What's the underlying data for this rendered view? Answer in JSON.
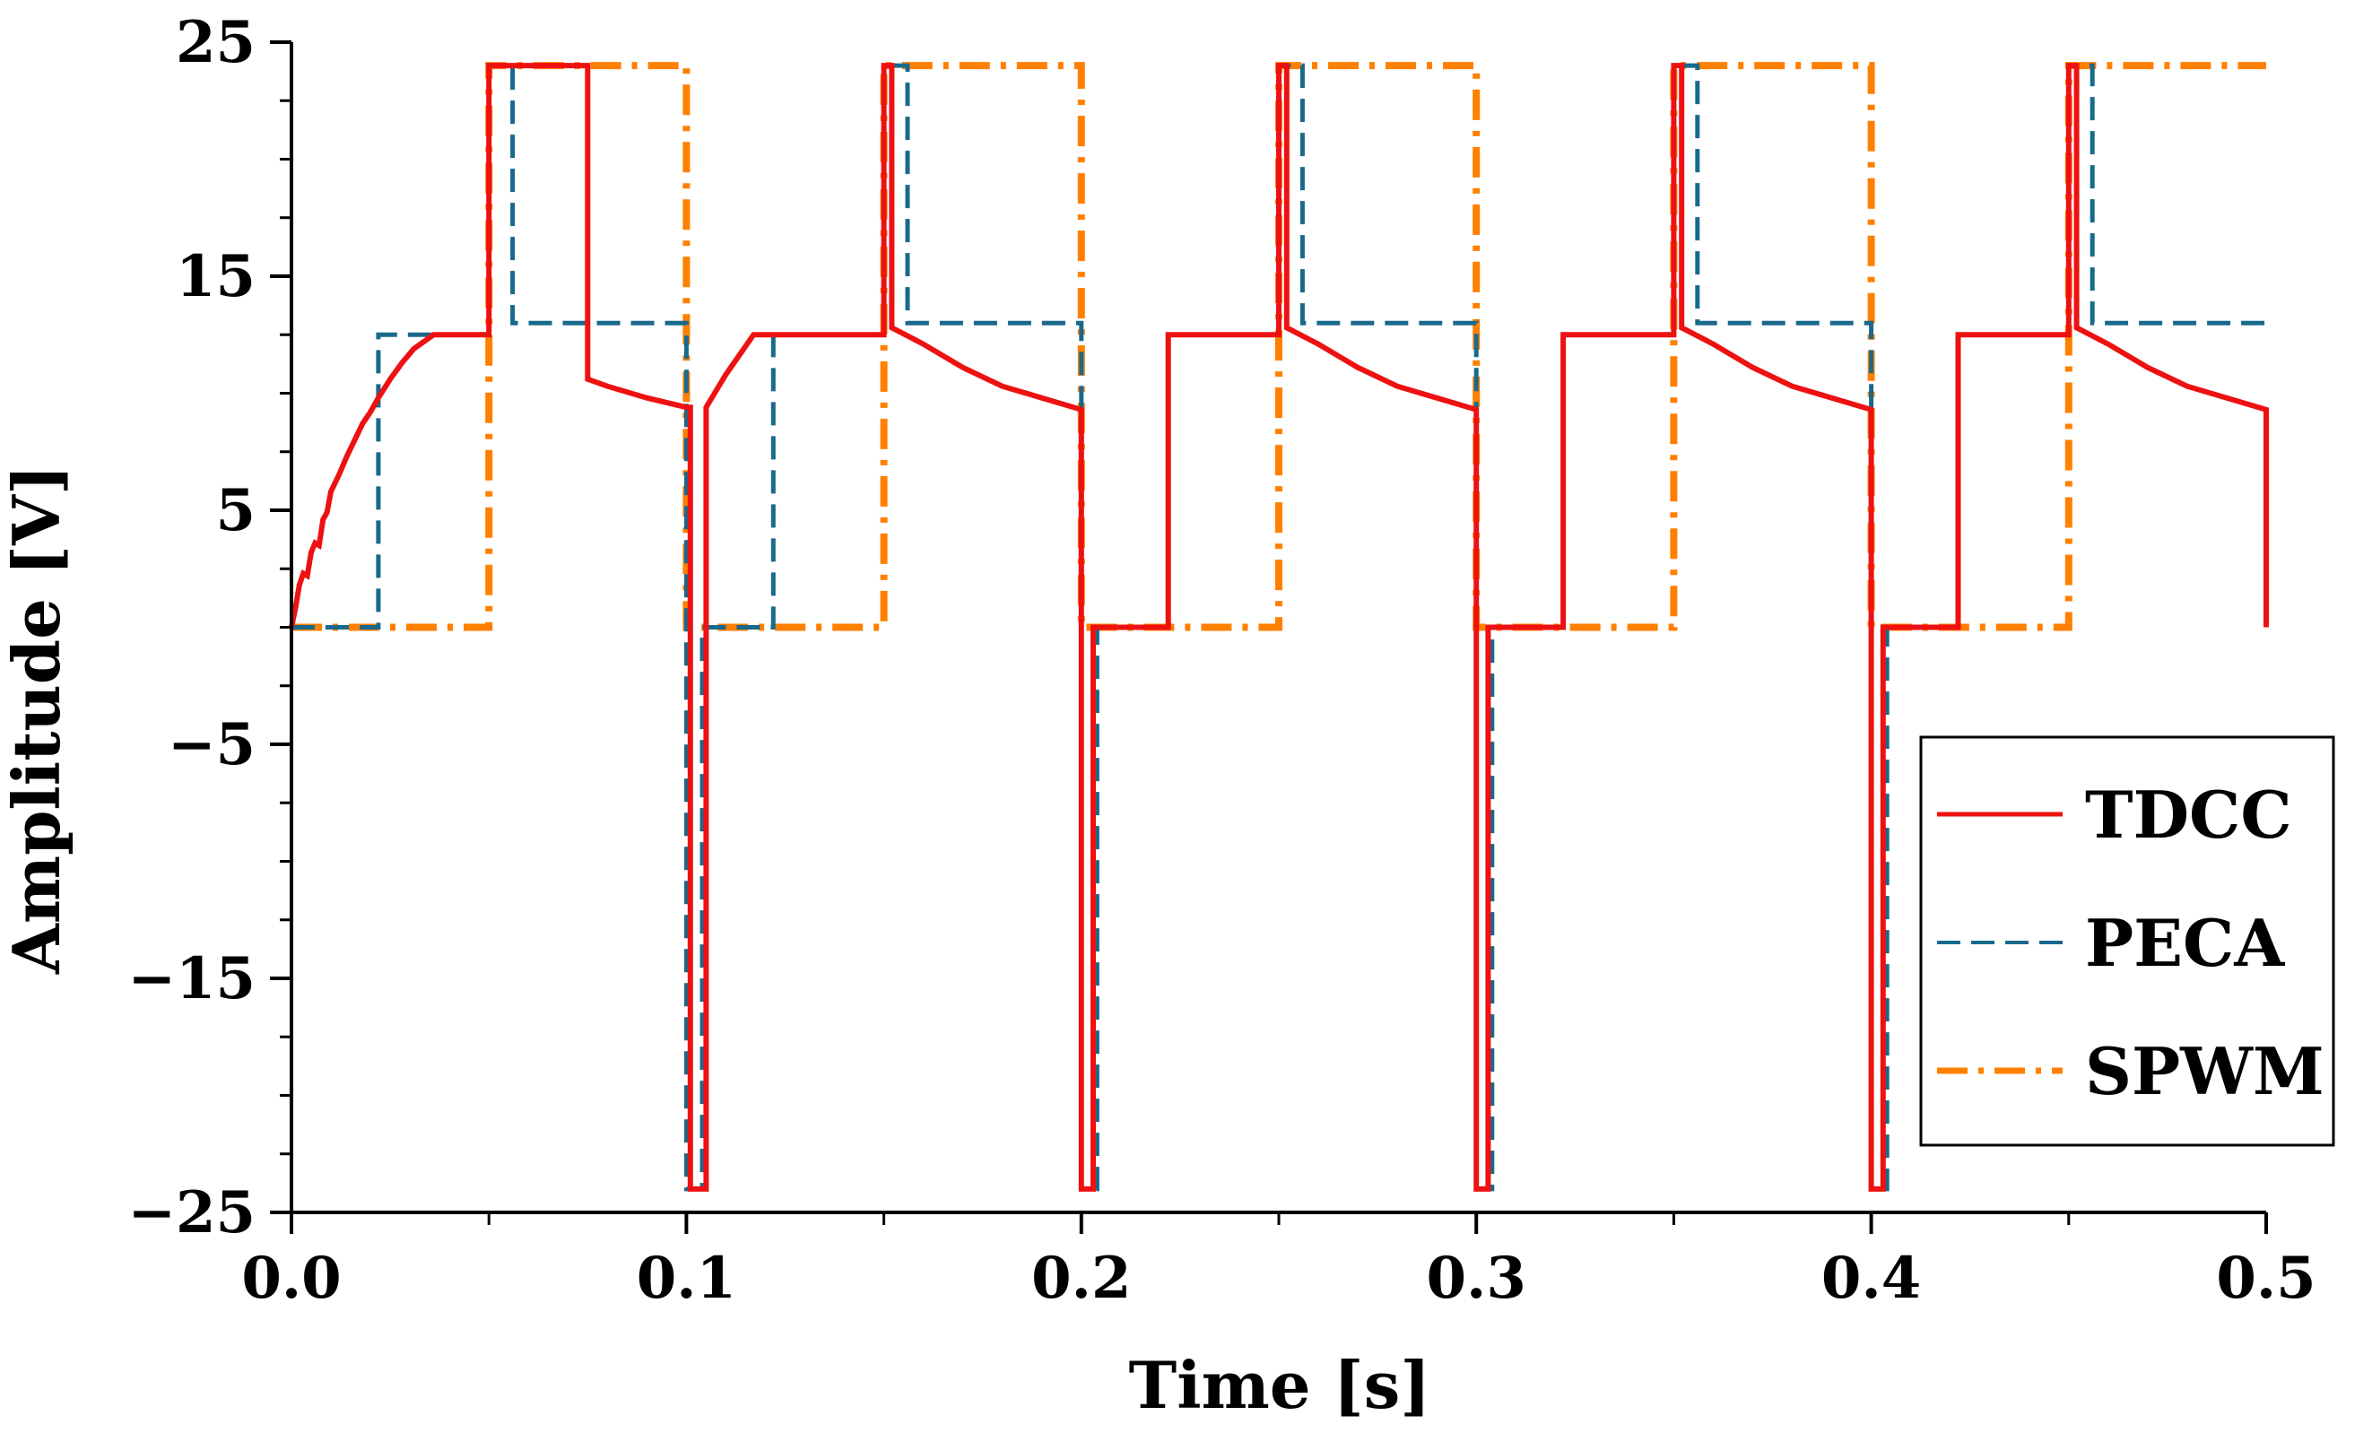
{
  "chart_data": {
    "type": "line",
    "title": "",
    "xlabel": "Time [s]",
    "ylabel": "Amplitude [V]",
    "xlim": [
      0,
      0.5
    ],
    "ylim": [
      -25,
      25
    ],
    "xticks": [
      0.0,
      0.1,
      0.2,
      0.3,
      0.4,
      0.5
    ],
    "xtick_labels": [
      "0.0",
      "0.1",
      "0.2",
      "0.3",
      "0.4",
      "0.5"
    ],
    "yticks": [
      25,
      15,
      5,
      -5,
      -15,
      -25
    ],
    "ytick_labels": [
      "25",
      "15",
      "5",
      "−5",
      "−15",
      "−25"
    ],
    "grid": false,
    "legend_position": "right",
    "series": [
      {
        "name": "TDCC",
        "color": "#ee1111",
        "style": "solid",
        "points": [
          [
            0,
            0
          ],
          [
            0.001,
            0.8
          ],
          [
            0.002,
            1.8
          ],
          [
            0.003,
            2.3
          ],
          [
            0.004,
            2.2
          ],
          [
            0.005,
            3.2
          ],
          [
            0.006,
            3.6
          ],
          [
            0.007,
            3.5
          ],
          [
            0.008,
            4.6
          ],
          [
            0.009,
            4.9
          ],
          [
            0.01,
            5.8
          ],
          [
            0.012,
            6.5
          ],
          [
            0.014,
            7.3
          ],
          [
            0.016,
            8.0
          ],
          [
            0.018,
            8.7
          ],
          [
            0.02,
            9.2
          ],
          [
            0.022,
            9.8
          ],
          [
            0.025,
            10.6
          ],
          [
            0.028,
            11.3
          ],
          [
            0.031,
            11.9
          ],
          [
            0.036,
            12.5
          ],
          [
            0.05,
            12.5
          ],
          [
            0.05,
            24.0
          ],
          [
            0.075,
            24.0
          ],
          [
            0.075,
            10.6
          ],
          [
            0.08,
            10.3
          ],
          [
            0.09,
            9.8
          ],
          [
            0.1,
            9.4
          ],
          [
            0.101,
            9.4
          ],
          [
            0.101,
            -24.0
          ],
          [
            0.105,
            -24.0
          ],
          [
            0.105,
            9.4
          ],
          [
            0.11,
            10.8
          ],
          [
            0.117,
            12.5
          ],
          [
            0.15,
            12.5
          ],
          [
            0.15,
            24.0
          ],
          [
            0.152,
            24.0
          ],
          [
            0.152,
            12.8
          ],
          [
            0.16,
            12.1
          ],
          [
            0.17,
            11.1
          ],
          [
            0.18,
            10.3
          ],
          [
            0.19,
            9.8
          ],
          [
            0.2,
            9.3
          ],
          [
            0.2,
            -24.0
          ],
          [
            0.203,
            -24.0
          ],
          [
            0.203,
            0
          ],
          [
            0.222,
            0
          ],
          [
            0.222,
            12.5
          ],
          [
            0.25,
            12.5
          ],
          [
            0.25,
            24.0
          ],
          [
            0.252,
            24.0
          ],
          [
            0.252,
            12.8
          ],
          [
            0.26,
            12.1
          ],
          [
            0.27,
            11.1
          ],
          [
            0.28,
            10.3
          ],
          [
            0.29,
            9.8
          ],
          [
            0.3,
            9.3
          ],
          [
            0.3,
            -24.0
          ],
          [
            0.303,
            -24.0
          ],
          [
            0.303,
            0
          ],
          [
            0.322,
            0
          ],
          [
            0.322,
            12.5
          ],
          [
            0.35,
            12.5
          ],
          [
            0.35,
            24.0
          ],
          [
            0.352,
            24.0
          ],
          [
            0.352,
            12.8
          ],
          [
            0.36,
            12.1
          ],
          [
            0.37,
            11.1
          ],
          [
            0.38,
            10.3
          ],
          [
            0.39,
            9.8
          ],
          [
            0.4,
            9.3
          ],
          [
            0.4,
            -24.0
          ],
          [
            0.403,
            -24.0
          ],
          [
            0.403,
            0
          ],
          [
            0.422,
            0
          ],
          [
            0.422,
            12.5
          ],
          [
            0.45,
            12.5
          ],
          [
            0.45,
            24.0
          ],
          [
            0.452,
            24.0
          ],
          [
            0.452,
            12.8
          ],
          [
            0.46,
            12.1
          ],
          [
            0.47,
            11.1
          ],
          [
            0.48,
            10.3
          ],
          [
            0.49,
            9.8
          ],
          [
            0.5,
            9.3
          ],
          [
            0.5,
            0
          ]
        ]
      },
      {
        "name": "PECA",
        "color": "#19698c",
        "style": "dashed",
        "points": [
          [
            0,
            0
          ],
          [
            0.022,
            0
          ],
          [
            0.022,
            12.5
          ],
          [
            0.05,
            12.5
          ],
          [
            0.05,
            24.0
          ],
          [
            0.056,
            24.0
          ],
          [
            0.056,
            13.0
          ],
          [
            0.1,
            13.0
          ],
          [
            0.1,
            -24.0
          ],
          [
            0.104,
            -24.0
          ],
          [
            0.104,
            0
          ],
          [
            0.122,
            0
          ],
          [
            0.122,
            12.5
          ],
          [
            0.15,
            12.5
          ],
          [
            0.15,
            24.0
          ],
          [
            0.156,
            24.0
          ],
          [
            0.156,
            13.0
          ],
          [
            0.2,
            13.0
          ],
          [
            0.2,
            -24.0
          ],
          [
            0.204,
            -24.0
          ],
          [
            0.204,
            0
          ],
          [
            0.222,
            0
          ],
          [
            0.222,
            12.5
          ],
          [
            0.25,
            12.5
          ],
          [
            0.25,
            24.0
          ],
          [
            0.256,
            24.0
          ],
          [
            0.256,
            13.0
          ],
          [
            0.3,
            13.0
          ],
          [
            0.3,
            -24.0
          ],
          [
            0.304,
            -24.0
          ],
          [
            0.304,
            0
          ],
          [
            0.322,
            0
          ],
          [
            0.322,
            12.5
          ],
          [
            0.35,
            12.5
          ],
          [
            0.35,
            24.0
          ],
          [
            0.356,
            24.0
          ],
          [
            0.356,
            13.0
          ],
          [
            0.4,
            13.0
          ],
          [
            0.4,
            -24.0
          ],
          [
            0.404,
            -24.0
          ],
          [
            0.404,
            0
          ],
          [
            0.422,
            0
          ],
          [
            0.422,
            12.5
          ],
          [
            0.45,
            12.5
          ],
          [
            0.45,
            24.0
          ],
          [
            0.456,
            24.0
          ],
          [
            0.456,
            13.0
          ],
          [
            0.5,
            13.0
          ]
        ]
      },
      {
        "name": "SPWM",
        "color": "#ff8000",
        "style": "dashdot",
        "points": [
          [
            0,
            0
          ],
          [
            0.05,
            0
          ],
          [
            0.05,
            24.0
          ],
          [
            0.1,
            24.0
          ],
          [
            0.1,
            0
          ],
          [
            0.15,
            0
          ],
          [
            0.15,
            24.0
          ],
          [
            0.2,
            24.0
          ],
          [
            0.2,
            0
          ],
          [
            0.25,
            0
          ],
          [
            0.25,
            24.0
          ],
          [
            0.3,
            24.0
          ],
          [
            0.3,
            0
          ],
          [
            0.35,
            0
          ],
          [
            0.35,
            24.0
          ],
          [
            0.4,
            24.0
          ],
          [
            0.4,
            0
          ],
          [
            0.45,
            0
          ],
          [
            0.45,
            24.0
          ],
          [
            0.5,
            24.0
          ]
        ]
      }
    ]
  }
}
